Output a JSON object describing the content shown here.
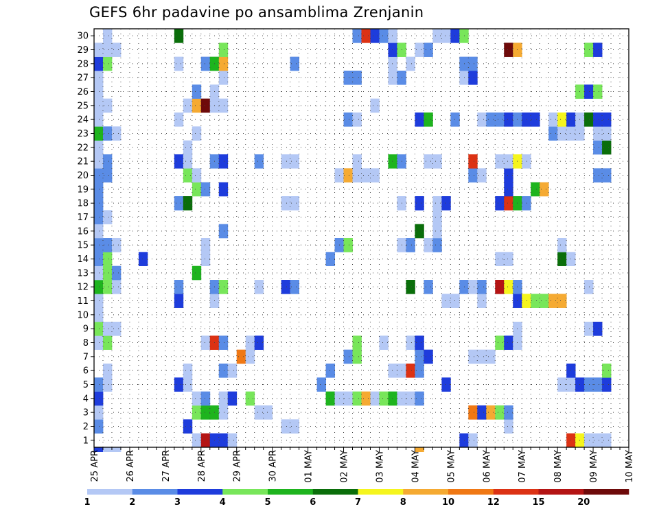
{
  "chart_data": {
    "type": "heatmap",
    "title": "GEFS 6hr padavine po ansamblima Zrenjanin",
    "xlabel": "",
    "ylabel": "",
    "x_tick_labels": [
      "25 APR",
      "26 APR",
      "27 APR",
      "28 APR",
      "29 APR",
      "30 APR",
      "01 MAY",
      "02 MAY",
      "03 MAY",
      "04 MAY",
      "05 MAY",
      "06 MAY",
      "07 MAY",
      "08 MAY",
      "09 MAY",
      "10 MAY"
    ],
    "x_steps_per_day": 4,
    "x_step_count": 61,
    "y_tick_labels": [
      "1",
      "2",
      "3",
      "4",
      "5",
      "6",
      "7",
      "8",
      "9",
      "10",
      "11",
      "12",
      "13",
      "14",
      "15",
      "16",
      "17",
      "18",
      "19",
      "20",
      "21",
      "22",
      "23",
      "24",
      "25",
      "26",
      "27",
      "28",
      "29",
      "30"
    ],
    "ylim": [
      0.5,
      30.5
    ],
    "grid": true,
    "colorbar": {
      "colors": [
        "#b4c8f5",
        "#5a8ce6",
        "#1e3cdc",
        "#78e65a",
        "#1eb41e",
        "#0a6e0a",
        "#f5f51e",
        "#f5aa32",
        "#f07814",
        "#dc3214",
        "#b41414",
        "#6e0a0a"
      ],
      "tick_labels": [
        "1",
        "2",
        "3",
        "4",
        "5",
        "6",
        "7",
        "8",
        "10",
        "12",
        "15",
        "20"
      ]
    },
    "cell_encoding": "member: [[time_step, class_index], ...], class_index 1-12 = colorbar.colors",
    "cells": {
      "1": [
        [
          11,
          1
        ],
        [
          12,
          11
        ],
        [
          13,
          3
        ],
        [
          14,
          3
        ],
        [
          15,
          1
        ],
        [
          41,
          3
        ],
        [
          42,
          1
        ],
        [
          53,
          10
        ],
        [
          54,
          7
        ],
        [
          55,
          1
        ],
        [
          56,
          1
        ],
        [
          57,
          1
        ]
      ],
      "2": [
        [
          0,
          2
        ],
        [
          10,
          3
        ],
        [
          21,
          1
        ],
        [
          22,
          1
        ],
        [
          46,
          1
        ]
      ],
      "3": [
        [
          0,
          1
        ],
        [
          11,
          4
        ],
        [
          12,
          5
        ],
        [
          13,
          5
        ],
        [
          14,
          1
        ],
        [
          18,
          1
        ],
        [
          19,
          1
        ],
        [
          42,
          9
        ],
        [
          43,
          3
        ],
        [
          44,
          8
        ],
        [
          45,
          4
        ],
        [
          46,
          2
        ]
      ],
      "4": [
        [
          0,
          3
        ],
        [
          11,
          1
        ],
        [
          12,
          2
        ],
        [
          14,
          1
        ],
        [
          15,
          3
        ],
        [
          17,
          4
        ],
        [
          26,
          5
        ],
        [
          27,
          1
        ],
        [
          28,
          1
        ],
        [
          29,
          4
        ],
        [
          30,
          8
        ],
        [
          31,
          1
        ],
        [
          32,
          4
        ],
        [
          33,
          5
        ],
        [
          34,
          1
        ],
        [
          35,
          1
        ],
        [
          36,
          2
        ]
      ],
      "5": [
        [
          0,
          2
        ],
        [
          1,
          1
        ],
        [
          9,
          3
        ],
        [
          10,
          1
        ],
        [
          25,
          2
        ],
        [
          39,
          3
        ],
        [
          52,
          1
        ],
        [
          53,
          1
        ],
        [
          54,
          3
        ],
        [
          55,
          2
        ],
        [
          56,
          2
        ],
        [
          57,
          3
        ]
      ],
      "6": [
        [
          1,
          1
        ],
        [
          10,
          1
        ],
        [
          14,
          2
        ],
        [
          15,
          1
        ],
        [
          26,
          2
        ],
        [
          33,
          1
        ],
        [
          34,
          1
        ],
        [
          35,
          10
        ],
        [
          36,
          2
        ],
        [
          53,
          3
        ],
        [
          57,
          4
        ]
      ],
      "7": [
        [
          16,
          9
        ],
        [
          17,
          1
        ],
        [
          28,
          2
        ],
        [
          29,
          4
        ],
        [
          36,
          2
        ],
        [
          37,
          3
        ],
        [
          42,
          1
        ],
        [
          43,
          1
        ],
        [
          44,
          1
        ]
      ],
      "8": [
        [
          0,
          1
        ],
        [
          1,
          4
        ],
        [
          12,
          1
        ],
        [
          13,
          10
        ],
        [
          14,
          2
        ],
        [
          17,
          1
        ],
        [
          18,
          3
        ],
        [
          29,
          4
        ],
        [
          32,
          1
        ],
        [
          35,
          1
        ],
        [
          36,
          3
        ],
        [
          45,
          4
        ],
        [
          46,
          3
        ],
        [
          47,
          1
        ]
      ],
      "9": [
        [
          0,
          4
        ],
        [
          1,
          1
        ],
        [
          2,
          1
        ],
        [
          47,
          1
        ],
        [
          55,
          1
        ],
        [
          56,
          3
        ]
      ],
      "10": [
        [
          0,
          1
        ]
      ],
      "11": [
        [
          0,
          1
        ],
        [
          9,
          3
        ],
        [
          13,
          1
        ],
        [
          39,
          1
        ],
        [
          40,
          1
        ],
        [
          43,
          1
        ],
        [
          47,
          3
        ],
        [
          48,
          7
        ],
        [
          49,
          4
        ],
        [
          50,
          4
        ],
        [
          51,
          8
        ],
        [
          52,
          8
        ]
      ],
      "12": [
        [
          0,
          5
        ],
        [
          1,
          4
        ],
        [
          2,
          1
        ],
        [
          9,
          2
        ],
        [
          13,
          2
        ],
        [
          14,
          4
        ],
        [
          18,
          1
        ],
        [
          21,
          3
        ],
        [
          22,
          2
        ],
        [
          35,
          6
        ],
        [
          37,
          2
        ],
        [
          41,
          2
        ],
        [
          42,
          1
        ],
        [
          43,
          2
        ],
        [
          45,
          11
        ],
        [
          46,
          7
        ],
        [
          47,
          2
        ],
        [
          55,
          1
        ]
      ],
      "13": [
        [
          0,
          1
        ],
        [
          1,
          4
        ],
        [
          2,
          2
        ],
        [
          11,
          5
        ]
      ],
      "14": [
        [
          0,
          2
        ],
        [
          1,
          4
        ],
        [
          5,
          3
        ],
        [
          12,
          1
        ],
        [
          26,
          2
        ],
        [
          45,
          1
        ],
        [
          46,
          1
        ],
        [
          52,
          6
        ],
        [
          53,
          1
        ]
      ],
      "15": [
        [
          0,
          2
        ],
        [
          1,
          2
        ],
        [
          2,
          1
        ],
        [
          12,
          1
        ],
        [
          27,
          2
        ],
        [
          28,
          4
        ],
        [
          34,
          1
        ],
        [
          35,
          2
        ],
        [
          37,
          1
        ],
        [
          38,
          2
        ],
        [
          52,
          1
        ]
      ],
      "16": [
        [
          0,
          1
        ],
        [
          14,
          2
        ],
        [
          36,
          6
        ],
        [
          38,
          1
        ]
      ],
      "17": [
        [
          0,
          2
        ],
        [
          1,
          1
        ],
        [
          38,
          1
        ]
      ],
      "18": [
        [
          0,
          2
        ],
        [
          9,
          2
        ],
        [
          10,
          6
        ],
        [
          21,
          1
        ],
        [
          22,
          1
        ],
        [
          34,
          1
        ],
        [
          36,
          3
        ],
        [
          38,
          1
        ],
        [
          39,
          3
        ],
        [
          45,
          3
        ],
        [
          46,
          10
        ],
        [
          47,
          5
        ],
        [
          48,
          2
        ]
      ],
      "19": [
        [
          0,
          2
        ],
        [
          11,
          4
        ],
        [
          12,
          2
        ],
        [
          14,
          3
        ],
        [
          46,
          3
        ],
        [
          49,
          5
        ],
        [
          50,
          8
        ]
      ],
      "20": [
        [
          0,
          2
        ],
        [
          1,
          2
        ],
        [
          10,
          4
        ],
        [
          11,
          1
        ],
        [
          27,
          1
        ],
        [
          28,
          8
        ],
        [
          29,
          1
        ],
        [
          30,
          1
        ],
        [
          31,
          1
        ],
        [
          42,
          2
        ],
        [
          43,
          1
        ],
        [
          46,
          3
        ],
        [
          56,
          2
        ],
        [
          57,
          2
        ]
      ],
      "21": [
        [
          0,
          1
        ],
        [
          1,
          2
        ],
        [
          9,
          3
        ],
        [
          10,
          1
        ],
        [
          13,
          2
        ],
        [
          14,
          3
        ],
        [
          18,
          2
        ],
        [
          21,
          1
        ],
        [
          22,
          1
        ],
        [
          29,
          1
        ],
        [
          33,
          5
        ],
        [
          34,
          2
        ],
        [
          37,
          1
        ],
        [
          38,
          1
        ],
        [
          42,
          10
        ],
        [
          45,
          1
        ],
        [
          46,
          1
        ],
        [
          47,
          7
        ],
        [
          48,
          1
        ]
      ],
      "22": [
        [
          0,
          1
        ],
        [
          10,
          1
        ],
        [
          56,
          2
        ],
        [
          57,
          6
        ]
      ],
      "23": [
        [
          0,
          5
        ],
        [
          1,
          2
        ],
        [
          2,
          1
        ],
        [
          11,
          1
        ],
        [
          51,
          2
        ],
        [
          52,
          1
        ],
        [
          53,
          1
        ],
        [
          54,
          1
        ],
        [
          56,
          1
        ],
        [
          57,
          1
        ]
      ],
      "24": [
        [
          0,
          1
        ],
        [
          9,
          1
        ],
        [
          28,
          2
        ],
        [
          29,
          1
        ],
        [
          36,
          3
        ],
        [
          37,
          5
        ],
        [
          40,
          2
        ],
        [
          43,
          1
        ],
        [
          44,
          2
        ],
        [
          45,
          2
        ],
        [
          46,
          3
        ],
        [
          47,
          2
        ],
        [
          48,
          3
        ],
        [
          49,
          3
        ],
        [
          51,
          1
        ],
        [
          52,
          7
        ],
        [
          53,
          3
        ],
        [
          54,
          1
        ],
        [
          55,
          6
        ],
        [
          56,
          3
        ],
        [
          57,
          3
        ]
      ],
      "25": [
        [
          0,
          1
        ],
        [
          1,
          1
        ],
        [
          10,
          1
        ],
        [
          11,
          8
        ],
        [
          12,
          12
        ],
        [
          13,
          1
        ],
        [
          14,
          1
        ],
        [
          31,
          1
        ]
      ],
      "26": [
        [
          0,
          1
        ],
        [
          11,
          2
        ],
        [
          13,
          1
        ],
        [
          54,
          4
        ],
        [
          55,
          3
        ],
        [
          56,
          4
        ]
      ],
      "27": [
        [
          0,
          1
        ],
        [
          14,
          1
        ],
        [
          28,
          2
        ],
        [
          29,
          2
        ],
        [
          33,
          1
        ],
        [
          34,
          2
        ],
        [
          41,
          1
        ],
        [
          42,
          3
        ]
      ],
      "28": [
        [
          0,
          3
        ],
        [
          1,
          4
        ],
        [
          9,
          1
        ],
        [
          12,
          2
        ],
        [
          13,
          5
        ],
        [
          14,
          8
        ],
        [
          22,
          2
        ],
        [
          33,
          1
        ],
        [
          35,
          1
        ],
        [
          41,
          2
        ],
        [
          42,
          2
        ]
      ],
      "29": [
        [
          0,
          1
        ],
        [
          1,
          1
        ],
        [
          2,
          1
        ],
        [
          14,
          4
        ],
        [
          33,
          3
        ],
        [
          34,
          4
        ],
        [
          36,
          1
        ],
        [
          37,
          2
        ],
        [
          46,
          12
        ],
        [
          47,
          8
        ],
        [
          55,
          4
        ],
        [
          56,
          3
        ]
      ],
      "30": [
        [
          1,
          1
        ],
        [
          9,
          6
        ],
        [
          29,
          2
        ],
        [
          30,
          10
        ],
        [
          31,
          3
        ],
        [
          32,
          2
        ],
        [
          33,
          1
        ],
        [
          38,
          1
        ],
        [
          39,
          1
        ],
        [
          40,
          3
        ],
        [
          41,
          4
        ]
      ]
    },
    "below_axis_cells": [
      [
        0,
        3
      ],
      [
        1,
        1
      ],
      [
        2,
        1
      ],
      [
        36,
        8
      ]
    ]
  }
}
